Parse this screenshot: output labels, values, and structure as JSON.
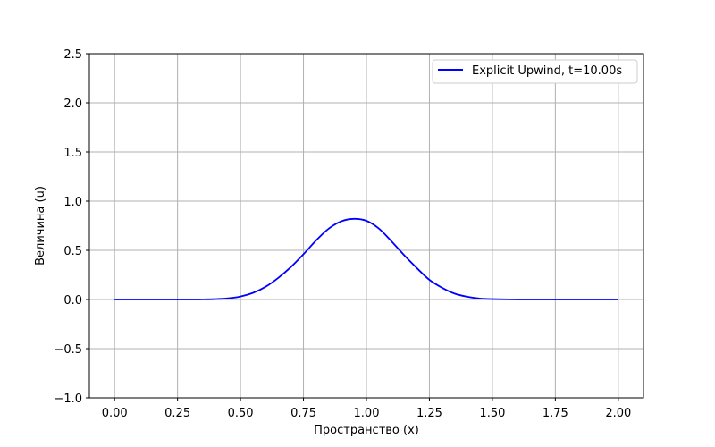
{
  "chart_data": {
    "type": "line",
    "title": "",
    "xlabel": "Пространство (x)",
    "ylabel": "Величина (u)",
    "xlim": [
      -0.1,
      2.1
    ],
    "ylim": [
      -1.0,
      2.5
    ],
    "xticks": [
      "0.00",
      "0.25",
      "0.50",
      "0.75",
      "1.00",
      "1.25",
      "1.50",
      "1.75",
      "2.00"
    ],
    "yticks": [
      "−1.0",
      "−0.5",
      "0.0",
      "0.5",
      "1.0",
      "1.5",
      "2.0",
      "2.5"
    ],
    "grid": true,
    "legend_position": "top-right",
    "series": [
      {
        "name": "Explicit Upwind, t=10.00s",
        "color": "#0000ff",
        "x": [
          0.0,
          0.1,
          0.2,
          0.3,
          0.35,
          0.4,
          0.45,
          0.5,
          0.55,
          0.6,
          0.65,
          0.7,
          0.75,
          0.8,
          0.85,
          0.9,
          0.95,
          1.0,
          1.05,
          1.1,
          1.15,
          1.2,
          1.25,
          1.3,
          1.35,
          1.4,
          1.45,
          1.5,
          1.6,
          1.7,
          1.8,
          1.9,
          2.0
        ],
        "y": [
          0.0,
          0.0,
          0.0,
          0.0,
          0.001,
          0.004,
          0.012,
          0.031,
          0.068,
          0.13,
          0.22,
          0.33,
          0.46,
          0.6,
          0.72,
          0.795,
          0.82,
          0.8,
          0.72,
          0.59,
          0.45,
          0.32,
          0.2,
          0.12,
          0.06,
          0.028,
          0.01,
          0.004,
          0.0,
          0.0,
          0.0,
          0.0,
          0.0
        ]
      }
    ]
  }
}
